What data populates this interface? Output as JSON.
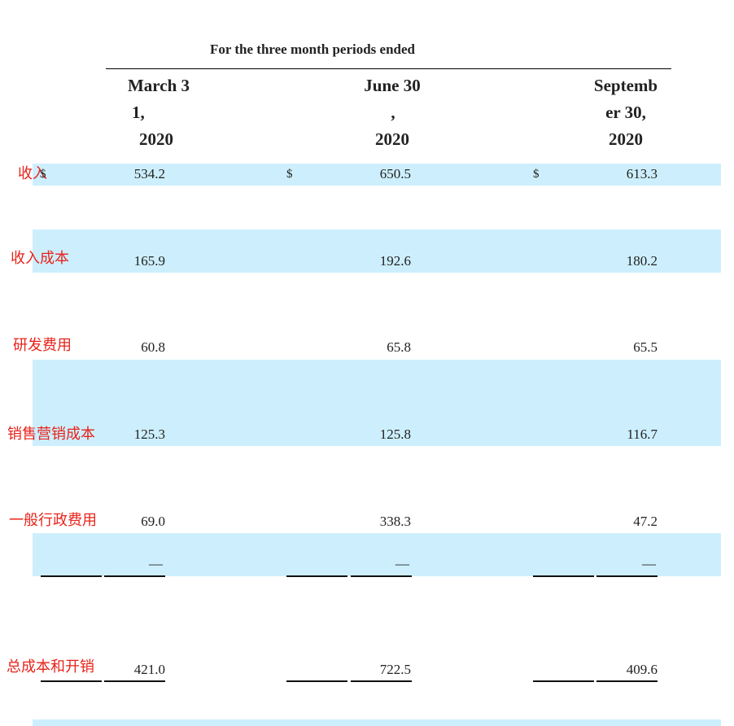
{
  "header": {
    "caption": "For the three month periods ended",
    "columns": [
      {
        "line1": "March 3",
        "line2": "1,",
        "line3": "2020"
      },
      {
        "line1": "June 30",
        "line2": ",",
        "line3": "2020"
      },
      {
        "line1": "Septemb",
        "line2": "er 30,",
        "line3": "2020"
      }
    ]
  },
  "currency_symbol": "$",
  "rows": [
    {
      "label": "收入",
      "values": [
        "534.2",
        "650.5",
        "613.3"
      ]
    },
    {
      "label": "收入成本",
      "values": [
        "165.9",
        "192.6",
        "180.2"
      ]
    },
    {
      "label": "研发费用",
      "values": [
        "60.8",
        "65.8",
        "65.5"
      ]
    },
    {
      "label": "销售营销成本",
      "values": [
        "125.3",
        "125.8",
        "116.7"
      ]
    },
    {
      "label": "一般行政费用",
      "values": [
        "69.0",
        "338.3",
        "47.2"
      ]
    },
    {
      "label": "",
      "values": [
        "—",
        "—",
        "—"
      ]
    },
    {
      "label": "总成本和开销",
      "values": [
        "421.0",
        "722.5",
        "409.6"
      ]
    }
  ]
}
